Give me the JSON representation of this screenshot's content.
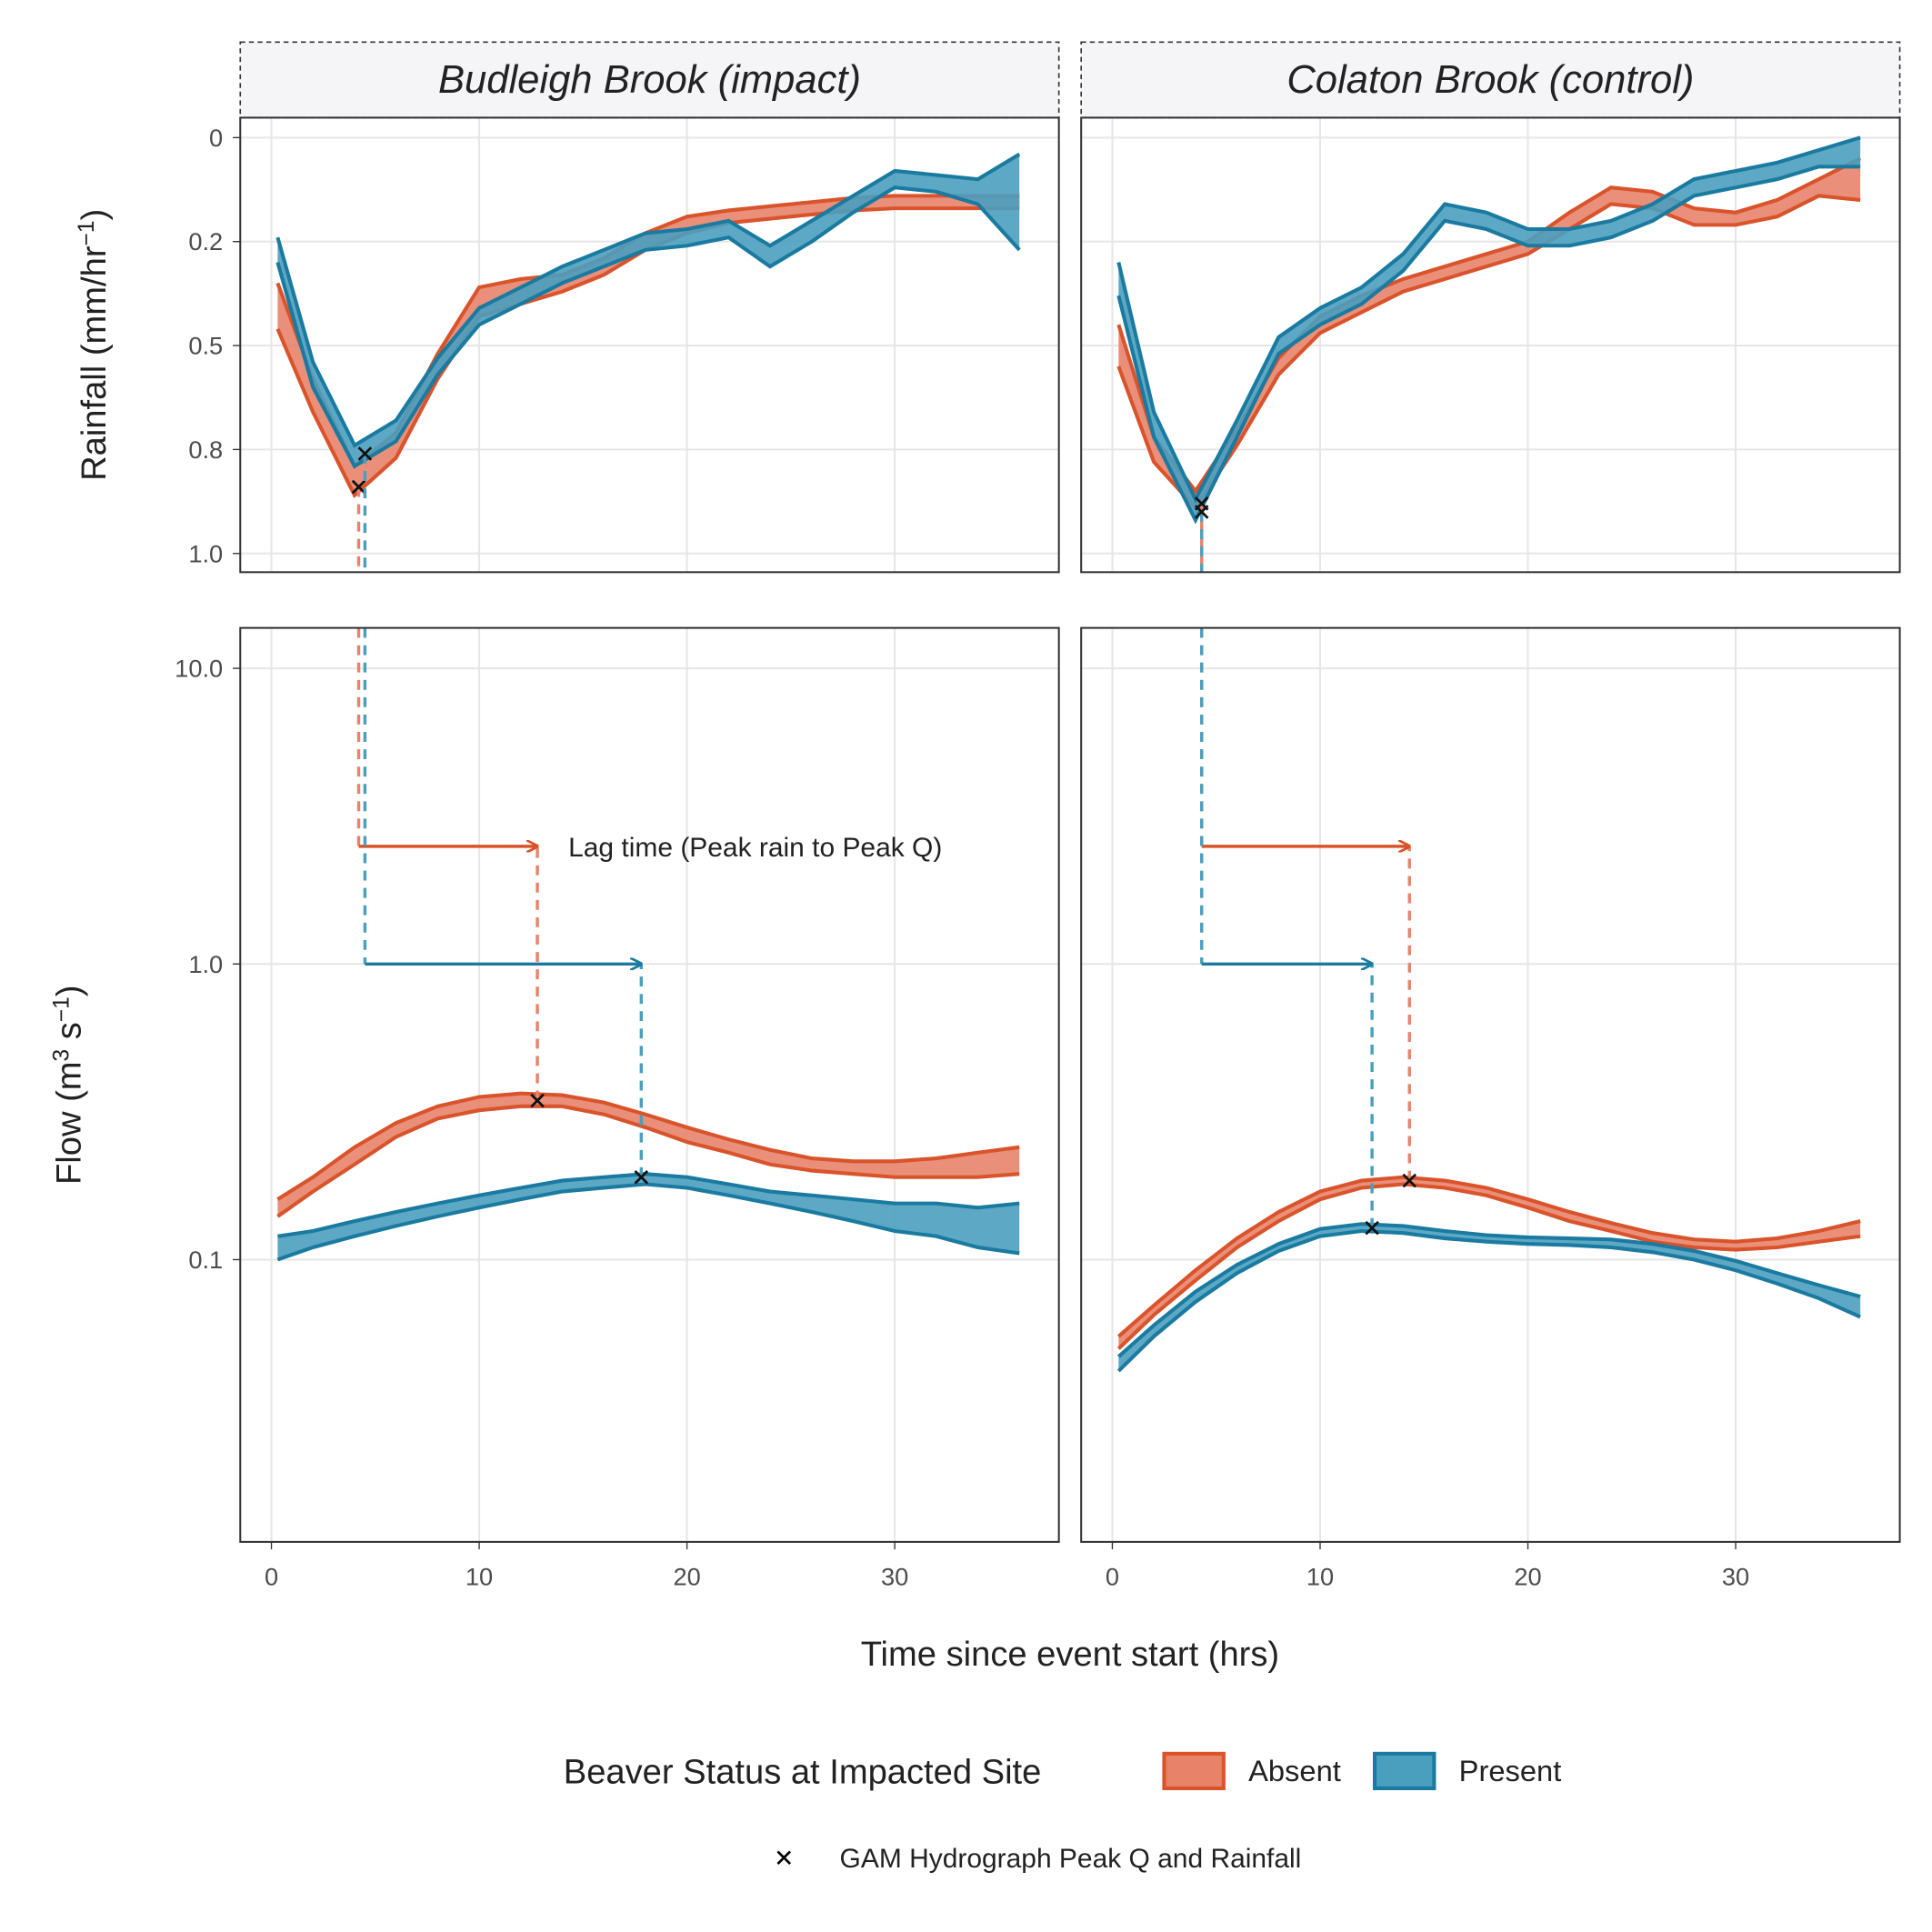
{
  "chart_data": {
    "type": "band",
    "x_label": "Time since event start (hrs)",
    "xlim": [
      -1.5,
      37.9
    ],
    "xticks": [
      0,
      10,
      20,
      30
    ],
    "x": [
      0.3,
      2,
      4,
      6,
      8,
      10,
      12,
      14,
      16,
      18,
      20,
      22,
      24,
      26,
      28,
      30,
      32,
      34,
      36
    ],
    "grid": true,
    "legend_title": "Beaver Status at Impacted Site",
    "legend_note": "GAM Hydrograph Peak Q and Rainfall",
    "series_style": [
      {
        "name": "Absent",
        "color": "#d9532b",
        "fill": "#e8836a"
      },
      {
        "name": "Present",
        "color": "#1a7aa0",
        "fill": "#4a9fbf"
      }
    ],
    "rain_axis": {
      "y_label_parts": [
        {
          "text": "Rainfall  (mm/hr"
        },
        {
          "text": "−1",
          "sup": true
        },
        {
          "text": ")"
        }
      ],
      "ylim": [
        -0.048,
        1.045
      ],
      "reversed": true,
      "yticks": [
        0,
        {
          "value": 0.25,
          "label": "0.2"
        },
        0.5,
        {
          "value": 0.75,
          "label": "0.8"
        },
        {
          "value": 1,
          "label": "1.0"
        }
      ]
    },
    "flow_axis": {
      "y_label_parts": [
        {
          "text": "Flow  (m"
        },
        {
          "text": "3",
          "sup": true
        },
        {
          "text": " s"
        },
        {
          "text": "−1",
          "sup": true
        },
        {
          "text": ")"
        }
      ],
      "ylim": [
        0.0111,
        13.7
      ],
      "log": true,
      "yticks": [
        0.1,
        {
          "value": 1,
          "label": "1.0"
        },
        {
          "value": 10,
          "label": "10.0"
        }
      ]
    },
    "facets": [
      {
        "title": "Budleigh Brook (impact)",
        "annotation": "Lag time (Peak rain to Peak Q)",
        "series": [
          {
            "rain_lower": [
              0.35,
              0.58,
              0.79,
              0.71,
              0.52,
              0.36,
              0.34,
              0.33,
              0.29,
              0.23,
              0.19,
              0.175,
              0.165,
              0.155,
              0.145,
              0.14,
              0.14,
              0.14,
              0.14
            ],
            "rain_upper": [
              0.46,
              0.66,
              0.86,
              0.77,
              0.58,
              0.43,
              0.4,
              0.37,
              0.33,
              0.27,
              0.23,
              0.205,
              0.195,
              0.185,
              0.175,
              0.17,
              0.17,
              0.17,
              0.17
            ],
            "rain_peak": [
              4.2,
              0.84
            ],
            "flow_lower": [
              0.14,
              0.17,
              0.21,
              0.26,
              0.3,
              0.32,
              0.33,
              0.33,
              0.31,
              0.28,
              0.25,
              0.23,
              0.21,
              0.2,
              0.195,
              0.19,
              0.19,
              0.19,
              0.195
            ],
            "flow_upper": [
              0.16,
              0.19,
              0.24,
              0.29,
              0.33,
              0.355,
              0.365,
              0.36,
              0.34,
              0.31,
              0.28,
              0.255,
              0.235,
              0.22,
              0.215,
              0.215,
              0.22,
              0.23,
              0.24
            ],
            "flow_peak": [
              12.8,
              0.345
            ],
            "lag_arrow_y": 2.5
          },
          {
            "rain_lower": [
              0.24,
              0.54,
              0.74,
              0.68,
              0.53,
              0.41,
              0.36,
              0.31,
              0.27,
              0.23,
              0.22,
              0.2,
              0.26,
              0.2,
              0.14,
              0.08,
              0.09,
              0.1,
              0.04
            ],
            "rain_upper": [
              0.3,
              0.6,
              0.79,
              0.73,
              0.57,
              0.45,
              0.4,
              0.35,
              0.31,
              0.27,
              0.26,
              0.24,
              0.31,
              0.25,
              0.18,
              0.12,
              0.13,
              0.16,
              0.27
            ],
            "rain_peak": [
              4.5,
              0.76
            ],
            "flow_lower": [
              0.1,
              0.11,
              0.12,
              0.13,
              0.14,
              0.15,
              0.16,
              0.17,
              0.175,
              0.18,
              0.175,
              0.165,
              0.155,
              0.145,
              0.135,
              0.125,
              0.12,
              0.11,
              0.105
            ],
            "flow_upper": [
              0.12,
              0.125,
              0.135,
              0.145,
              0.155,
              0.165,
              0.175,
              0.185,
              0.19,
              0.195,
              0.19,
              0.18,
              0.17,
              0.165,
              0.16,
              0.155,
              0.155,
              0.15,
              0.155
            ],
            "flow_peak": [
              17.8,
              0.19
            ],
            "lag_arrow_y": 1
          }
        ]
      },
      {
        "title": "Colaton Brook (control)",
        "series": [
          {
            "rain_lower": [
              0.45,
              0.72,
              0.85,
              0.7,
              0.53,
              0.43,
              0.38,
              0.34,
              0.31,
              0.28,
              0.25,
              0.18,
              0.12,
              0.13,
              0.17,
              0.18,
              0.15,
              0.1,
              0.05
            ],
            "rain_upper": [
              0.55,
              0.78,
              0.89,
              0.74,
              0.57,
              0.47,
              0.42,
              0.37,
              0.34,
              0.31,
              0.28,
              0.22,
              0.16,
              0.17,
              0.21,
              0.21,
              0.19,
              0.14,
              0.15
            ],
            "rain_peak": [
              4.3,
              0.88
            ],
            "flow_lower": [
              0.05,
              0.065,
              0.085,
              0.11,
              0.135,
              0.16,
              0.175,
              0.18,
              0.175,
              0.165,
              0.15,
              0.135,
              0.125,
              0.115,
              0.11,
              0.108,
              0.11,
              0.115,
              0.12
            ],
            "flow_upper": [
              0.055,
              0.07,
              0.092,
              0.118,
              0.145,
              0.17,
              0.185,
              0.19,
              0.185,
              0.175,
              0.16,
              0.145,
              0.133,
              0.123,
              0.117,
              0.115,
              0.118,
              0.125,
              0.135
            ],
            "flow_peak": [
              14.3,
              0.185
            ],
            "lag_arrow_y": 2.5
          },
          {
            "rain_lower": [
              0.3,
              0.66,
              0.87,
              0.68,
              0.48,
              0.41,
              0.36,
              0.28,
              0.16,
              0.18,
              0.22,
              0.22,
              0.2,
              0.16,
              0.1,
              0.08,
              0.06,
              0.03,
              0.0
            ],
            "rain_upper": [
              0.38,
              0.72,
              0.92,
              0.72,
              0.52,
              0.45,
              0.4,
              0.32,
              0.2,
              0.22,
              0.26,
              0.26,
              0.24,
              0.2,
              0.14,
              0.12,
              0.1,
              0.07,
              0.07
            ],
            "rain_peak": [
              4.3,
              0.9
            ],
            "flow_lower": [
              0.042,
              0.055,
              0.072,
              0.09,
              0.107,
              0.12,
              0.125,
              0.123,
              0.118,
              0.115,
              0.113,
              0.112,
              0.11,
              0.106,
              0.1,
              0.092,
              0.083,
              0.074,
              0.064
            ],
            "flow_upper": [
              0.047,
              0.06,
              0.078,
              0.096,
              0.113,
              0.127,
              0.132,
              0.13,
              0.125,
              0.121,
              0.119,
              0.118,
              0.117,
              0.113,
              0.107,
              0.099,
              0.09,
              0.082,
              0.075
            ],
            "flow_peak": [
              12.5,
              0.128
            ],
            "lag_arrow_y": 1
          }
        ]
      }
    ]
  }
}
